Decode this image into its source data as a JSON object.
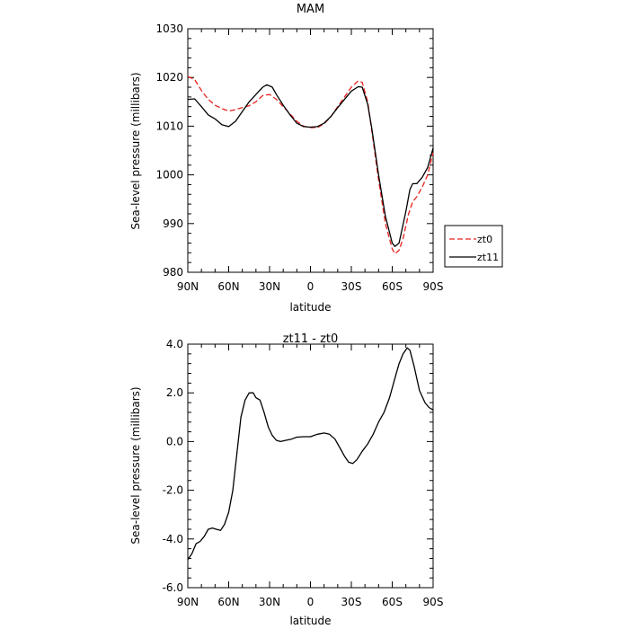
{
  "chart_data": [
    {
      "type": "line",
      "title": "MAM",
      "xlabel": "latitude",
      "ylabel": "Sea-level pressure (millibars)",
      "x_ticks": [
        90,
        60,
        30,
        0,
        -30,
        -60,
        -90
      ],
      "x_tick_labels": [
        "90N",
        "60N",
        "30N",
        "0",
        "30S",
        "60S",
        "90S"
      ],
      "xlim": [
        90,
        -90
      ],
      "ylim": [
        980,
        1030
      ],
      "y_ticks": [
        980,
        990,
        1000,
        1010,
        1020,
        1030
      ],
      "y_tick_labels": [
        "980",
        "990",
        "1000",
        "1010",
        "1020",
        "1030"
      ],
      "legend": "right-bottom-outside",
      "series": [
        {
          "name": "zt0",
          "color": "#e8211d",
          "dash": "dashed",
          "points": [
            [
              90,
              1020.2
            ],
            [
              85,
              1019.6
            ],
            [
              80,
              1017.3
            ],
            [
              75,
              1015.5
            ],
            [
              70,
              1014.3
            ],
            [
              65,
              1013.6
            ],
            [
              60,
              1013.1
            ],
            [
              55,
              1013.4
            ],
            [
              50,
              1013.8
            ],
            [
              45,
              1014.2
            ],
            [
              40,
              1015.0
            ],
            [
              35,
              1016.3
            ],
            [
              30,
              1016.5
            ],
            [
              25,
              1015.5
            ],
            [
              20,
              1014.0
            ],
            [
              15,
              1012.5
            ],
            [
              10,
              1011.0
            ],
            [
              5,
              1010.0
            ],
            [
              0,
              1009.7
            ],
            [
              -5,
              1009.7
            ],
            [
              -10,
              1010.5
            ],
            [
              -15,
              1012.0
            ],
            [
              -20,
              1014.0
            ],
            [
              -25,
              1016.0
            ],
            [
              -30,
              1018.0
            ],
            [
              -35,
              1019.3
            ],
            [
              -38,
              1019.0
            ],
            [
              -42,
              1015.0
            ],
            [
              -45,
              1009.0
            ],
            [
              -50,
              999.0
            ],
            [
              -55,
              990.0
            ],
            [
              -60,
              984.8
            ],
            [
              -62,
              983.8
            ],
            [
              -65,
              984.5
            ],
            [
              -68,
              987.0
            ],
            [
              -72,
              992.0
            ],
            [
              -75,
              994.5
            ],
            [
              -78,
              995.5
            ],
            [
              -82,
              997.5
            ],
            [
              -86,
              1000.0
            ],
            [
              -90,
              1004.5
            ]
          ]
        },
        {
          "name": "zt11",
          "color": "#000000",
          "dash": "solid",
          "points": [
            [
              90,
              1015.5
            ],
            [
              85,
              1015.6
            ],
            [
              80,
              1014.0
            ],
            [
              75,
              1012.3
            ],
            [
              70,
              1011.5
            ],
            [
              65,
              1010.3
            ],
            [
              60,
              1009.9
            ],
            [
              55,
              1011.0
            ],
            [
              50,
              1013.0
            ],
            [
              45,
              1015.0
            ],
            [
              40,
              1016.5
            ],
            [
              35,
              1018.0
            ],
            [
              32,
              1018.5
            ],
            [
              28,
              1018.0
            ],
            [
              25,
              1016.5
            ],
            [
              20,
              1014.3
            ],
            [
              15,
              1012.3
            ],
            [
              10,
              1010.6
            ],
            [
              5,
              1009.9
            ],
            [
              0,
              1009.8
            ],
            [
              -5,
              1009.9
            ],
            [
              -10,
              1010.6
            ],
            [
              -15,
              1012.0
            ],
            [
              -20,
              1013.8
            ],
            [
              -25,
              1015.5
            ],
            [
              -30,
              1017.2
            ],
            [
              -35,
              1018.1
            ],
            [
              -38,
              1018.0
            ],
            [
              -42,
              1014.5
            ],
            [
              -45,
              1009.5
            ],
            [
              -50,
              1000.0
            ],
            [
              -55,
              991.5
            ],
            [
              -60,
              986.0
            ],
            [
              -62,
              985.3
            ],
            [
              -65,
              986.0
            ],
            [
              -70,
              992.5
            ],
            [
              -73,
              997.0
            ],
            [
              -75,
              998.2
            ],
            [
              -78,
              998.2
            ],
            [
              -82,
              999.5
            ],
            [
              -86,
              1001.5
            ],
            [
              -90,
              1005.5
            ]
          ]
        }
      ]
    },
    {
      "type": "line",
      "title": "zt11 - zt0",
      "xlabel": "latitude",
      "ylabel": "Sea-level pressure (millibars)",
      "x_ticks": [
        90,
        60,
        30,
        0,
        -30,
        -60,
        -90
      ],
      "x_tick_labels": [
        "90N",
        "60N",
        "30N",
        "0",
        "30S",
        "60S",
        "90S"
      ],
      "xlim": [
        90,
        -90
      ],
      "ylim": [
        -6.0,
        4.0
      ],
      "y_ticks": [
        -6,
        -4,
        -2,
        0,
        2,
        4
      ],
      "y_tick_labels": [
        "-6.0",
        "-4.0",
        "-2.0",
        "0.0",
        "2.0",
        "4.0"
      ],
      "series": [
        {
          "color": "#000000",
          "dash": "solid",
          "points": [
            [
              90,
              -4.85
            ],
            [
              87,
              -4.6
            ],
            [
              84,
              -4.2
            ],
            [
              81,
              -4.1
            ],
            [
              78,
              -3.9
            ],
            [
              75,
              -3.6
            ],
            [
              72,
              -3.55
            ],
            [
              69,
              -3.6
            ],
            [
              66,
              -3.65
            ],
            [
              63,
              -3.4
            ],
            [
              60,
              -2.9
            ],
            [
              57,
              -2.0
            ],
            [
              54,
              -0.5
            ],
            [
              51,
              1.0
            ],
            [
              48,
              1.7
            ],
            [
              45,
              2.0
            ],
            [
              42,
              2.0
            ],
            [
              40,
              1.8
            ],
            [
              37,
              1.7
            ],
            [
              34,
              1.2
            ],
            [
              31,
              0.6
            ],
            [
              28,
              0.25
            ],
            [
              25,
              0.05
            ],
            [
              22,
              0.0
            ],
            [
              18,
              0.05
            ],
            [
              14,
              0.1
            ],
            [
              10,
              0.18
            ],
            [
              5,
              0.2
            ],
            [
              0,
              0.2
            ],
            [
              -5,
              0.3
            ],
            [
              -10,
              0.35
            ],
            [
              -14,
              0.3
            ],
            [
              -18,
              0.1
            ],
            [
              -22,
              -0.3
            ],
            [
              -25,
              -0.6
            ],
            [
              -28,
              -0.85
            ],
            [
              -31,
              -0.9
            ],
            [
              -34,
              -0.75
            ],
            [
              -38,
              -0.4
            ],
            [
              -42,
              -0.1
            ],
            [
              -46,
              0.3
            ],
            [
              -50,
              0.8
            ],
            [
              -54,
              1.2
            ],
            [
              -58,
              1.8
            ],
            [
              -62,
              2.6
            ],
            [
              -65,
              3.2
            ],
            [
              -68,
              3.6
            ],
            [
              -71,
              3.85
            ],
            [
              -73,
              3.75
            ],
            [
              -76,
              3.1
            ],
            [
              -80,
              2.1
            ],
            [
              -84,
              1.6
            ],
            [
              -87,
              1.4
            ],
            [
              -90,
              1.3
            ]
          ]
        }
      ]
    }
  ]
}
